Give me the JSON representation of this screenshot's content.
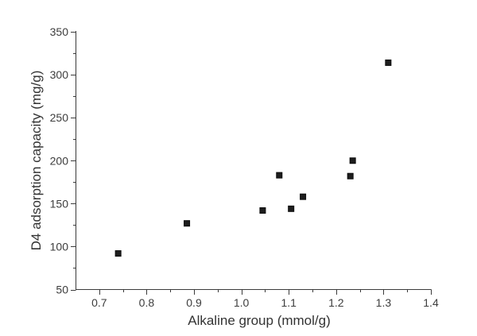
{
  "chart_data": {
    "type": "scatter",
    "title": "",
    "xlabel": "Alkaline group (mmol/g)",
    "ylabel": "D4 adsorption capacity (mg/g)",
    "xlim": [
      0.65,
      1.4
    ],
    "ylim": [
      50,
      350
    ],
    "x_ticks": [
      0.7,
      0.8,
      0.9,
      1.0,
      1.1,
      1.2,
      1.3,
      1.4
    ],
    "x_tick_labels": [
      "0.7",
      "0.8",
      "0.9",
      "1.0",
      "1.1",
      "1.2",
      "1.3",
      "1.4"
    ],
    "x_minor_ticks": [
      0.75,
      0.85,
      0.95,
      1.05,
      1.15,
      1.25,
      1.35
    ],
    "y_ticks": [
      50,
      100,
      150,
      200,
      250,
      300,
      350
    ],
    "y_tick_labels": [
      "50",
      "100",
      "150",
      "200",
      "250",
      "300",
      "350"
    ],
    "y_minor_ticks": [
      75,
      125,
      175,
      225,
      275,
      325
    ],
    "grid": false,
    "legend": "none",
    "marker": "filled-square",
    "series": [
      {
        "name": "D4 adsorption capacity",
        "points": [
          {
            "x": 0.74,
            "y": 92
          },
          {
            "x": 0.885,
            "y": 127
          },
          {
            "x": 1.045,
            "y": 142
          },
          {
            "x": 1.08,
            "y": 183
          },
          {
            "x": 1.105,
            "y": 144
          },
          {
            "x": 1.13,
            "y": 158
          },
          {
            "x": 1.23,
            "y": 182
          },
          {
            "x": 1.235,
            "y": 200
          },
          {
            "x": 1.31,
            "y": 314
          }
        ]
      }
    ],
    "colors": {
      "marker_fill": "#1d1d1d",
      "marker_stroke": "#0d0d0d",
      "axis": "#3b3b3b",
      "tick_label": "#3d3d3d",
      "axis_title": "#333333",
      "background": "#ffffff"
    }
  }
}
